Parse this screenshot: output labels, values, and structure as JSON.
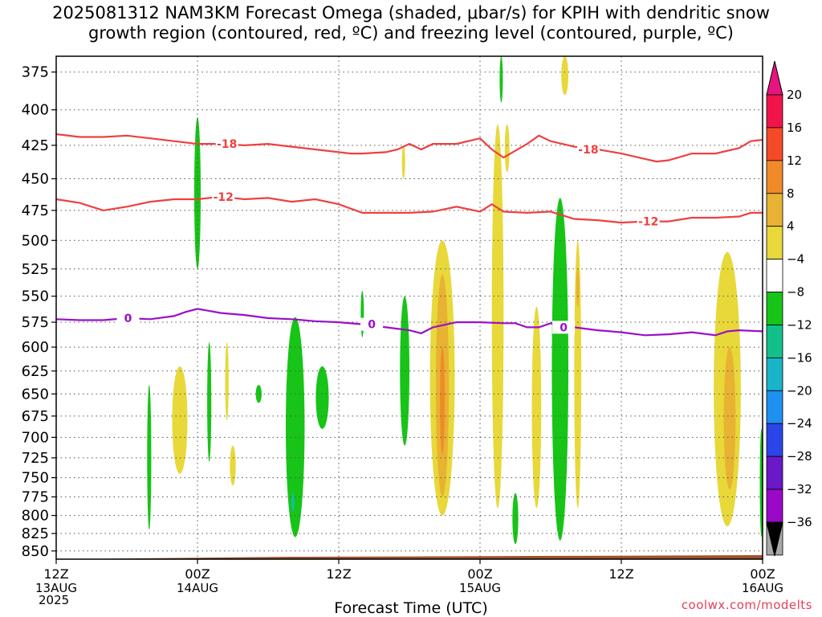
{
  "title_line1": "2025081312 NAM3KM Forecast Omega (shaded, μbar/s) for KPIH with dendritic snow",
  "title_line2": "growth region (contoured, red, ºC) and freezing level (contoured, purple, ºC)",
  "credit": "coolwx.com/modelts",
  "chart_data": {
    "type": "heatmap",
    "title": "2025081312 NAM3KM Forecast Omega (shaded, μbar/s) for KPIH with dendritic snow growth region (contoured, red, ºC) and freezing level (contoured, purple, ºC)",
    "xlabel": "Forecast Time (UTC)",
    "ylabel": "",
    "y_scale": "pressure (hPa), inverted",
    "y_ticks": [
      375,
      400,
      425,
      450,
      475,
      500,
      525,
      550,
      575,
      600,
      625,
      650,
      675,
      700,
      725,
      750,
      775,
      800,
      825,
      850
    ],
    "ylim": [
      850,
      365
    ],
    "x_range_hours": [
      0,
      60
    ],
    "x_ticks": [
      {
        "hour": 0,
        "label": "12Z",
        "sub": "13AUG",
        "sub2": "2025"
      },
      {
        "hour": 12,
        "label": "00Z",
        "sub": "14AUG",
        "sub2": ""
      },
      {
        "hour": 24,
        "label": "12Z",
        "sub": "",
        "sub2": ""
      },
      {
        "hour": 36,
        "label": "00Z",
        "sub": "15AUG",
        "sub2": ""
      },
      {
        "hour": 48,
        "label": "12Z",
        "sub": "",
        "sub2": ""
      },
      {
        "hour": 60,
        "label": "00Z",
        "sub": "16AUG",
        "sub2": ""
      }
    ],
    "grid": "dotted",
    "colorbar": {
      "labels": [
        "20",
        "16",
        "12",
        "8",
        "4",
        "−4",
        "−8",
        "−12",
        "−16",
        "−20",
        "−24",
        "−28",
        "−32",
        "−36"
      ],
      "colors": [
        "#f0144a",
        "#f54a2a",
        "#f08a28",
        "#e8b232",
        "#e8d83a",
        "#ffffff",
        "#17c417",
        "#13c08a",
        "#19b4c8",
        "#1e90f0",
        "#2a46e8",
        "#6a18c8",
        "#9a08c8",
        "#a9a9a9"
      ],
      "top_arrow_color": "#e6147e",
      "bottom_arrow_color": "#000000"
    },
    "contours": [
      {
        "level": "-18",
        "color": "#ee4040",
        "points": [
          [
            0,
            417
          ],
          [
            2,
            419
          ],
          [
            4,
            419
          ],
          [
            6,
            418
          ],
          [
            8,
            420
          ],
          [
            10,
            422
          ],
          [
            12,
            424
          ],
          [
            14,
            424
          ],
          [
            16,
            425
          ],
          [
            18,
            424
          ],
          [
            20,
            426
          ],
          [
            22,
            428
          ],
          [
            24,
            430
          ],
          [
            25,
            431
          ],
          [
            26,
            431
          ],
          [
            28,
            430
          ],
          [
            29,
            428
          ],
          [
            30,
            424
          ],
          [
            31,
            428
          ],
          [
            32,
            424
          ],
          [
            34,
            424
          ],
          [
            36,
            420
          ],
          [
            37,
            428
          ],
          [
            38,
            434
          ],
          [
            40,
            424
          ],
          [
            41,
            418
          ],
          [
            42,
            422
          ],
          [
            44,
            426
          ],
          [
            46,
            428
          ],
          [
            48,
            431
          ],
          [
            50,
            435
          ],
          [
            51,
            437
          ],
          [
            52,
            436
          ],
          [
            54,
            431
          ],
          [
            56,
            431
          ],
          [
            58,
            427
          ],
          [
            59,
            422
          ],
          [
            60,
            421
          ]
        ],
        "labels": [
          [
            14.5,
            424
          ],
          [
            45.2,
            428
          ]
        ]
      },
      {
        "level": "-12",
        "color": "#ee4040",
        "points": [
          [
            0,
            466
          ],
          [
            2,
            469
          ],
          [
            4,
            475
          ],
          [
            6,
            472
          ],
          [
            8,
            468
          ],
          [
            10,
            466
          ],
          [
            12,
            466
          ],
          [
            14,
            464
          ],
          [
            16,
            466
          ],
          [
            18,
            465
          ],
          [
            20,
            468
          ],
          [
            22,
            466
          ],
          [
            24,
            470
          ],
          [
            26,
            477
          ],
          [
            28,
            477
          ],
          [
            30,
            477
          ],
          [
            32,
            476
          ],
          [
            34,
            472
          ],
          [
            36,
            476
          ],
          [
            37,
            470
          ],
          [
            38,
            476
          ],
          [
            40,
            477
          ],
          [
            42,
            476
          ],
          [
            44,
            482
          ],
          [
            46,
            483
          ],
          [
            48,
            485
          ],
          [
            50,
            484
          ],
          [
            52,
            484
          ],
          [
            54,
            481
          ],
          [
            56,
            481
          ],
          [
            58,
            480
          ],
          [
            59,
            477
          ],
          [
            60,
            477
          ]
        ],
        "labels": [
          [
            14.2,
            464
          ],
          [
            50.3,
            484
          ]
        ]
      },
      {
        "level": "0",
        "color": "#9a10c8",
        "points": [
          [
            0,
            572
          ],
          [
            2,
            573
          ],
          [
            4,
            573
          ],
          [
            6,
            571
          ],
          [
            8,
            572
          ],
          [
            10,
            569
          ],
          [
            11,
            565
          ],
          [
            12,
            562
          ],
          [
            14,
            566
          ],
          [
            16,
            568
          ],
          [
            18,
            571
          ],
          [
            20,
            572
          ],
          [
            22,
            574
          ],
          [
            24,
            575
          ],
          [
            26,
            577
          ],
          [
            28,
            580
          ],
          [
            30,
            583
          ],
          [
            31,
            586
          ],
          [
            32,
            580
          ],
          [
            34,
            575
          ],
          [
            36,
            575
          ],
          [
            38,
            576
          ],
          [
            39,
            576
          ],
          [
            40,
            580
          ],
          [
            41,
            580
          ],
          [
            42,
            576
          ],
          [
            43,
            581
          ],
          [
            44,
            580
          ],
          [
            46,
            583
          ],
          [
            48,
            585
          ],
          [
            50,
            588
          ],
          [
            52,
            587
          ],
          [
            54,
            585
          ],
          [
            56,
            588
          ],
          [
            57,
            584
          ],
          [
            58,
            583
          ],
          [
            60,
            584
          ]
        ],
        "labels": [
          [
            6.1,
            571
          ],
          [
            26.8,
            577
          ],
          [
            43.1,
            580
          ]
        ]
      }
    ],
    "shaded_regions": [
      {
        "value": "4 to 8",
        "color": "#e8d83a",
        "cx": 10.5,
        "p1": 620,
        "p2": 745,
        "w": 1.3
      },
      {
        "value": "4 to 8",
        "color": "#e8d83a",
        "cx": 14.5,
        "p1": 595,
        "p2": 680,
        "w": 0.3
      },
      {
        "value": "4 to 8",
        "color": "#e8d83a",
        "cx": 15.0,
        "p1": 710,
        "p2": 760,
        "w": 0.5
      },
      {
        "value": "4 to 8",
        "color": "#e8d83a",
        "cx": 29.5,
        "p1": 425,
        "p2": 450,
        "w": 0.25
      },
      {
        "value": "4 to 8",
        "color": "#e8d83a",
        "cx": 32.8,
        "p1": 500,
        "p2": 800,
        "w": 2.1
      },
      {
        "value": "8 to 12",
        "color": "#e8b232",
        "cx": 32.8,
        "p1": 530,
        "p2": 775,
        "w": 1.1
      },
      {
        "value": "12 to 16",
        "color": "#f08a28",
        "cx": 32.8,
        "p1": 600,
        "p2": 720,
        "w": 0.4
      },
      {
        "value": "4 to 8",
        "color": "#e8d83a",
        "cx": 37.5,
        "p1": 410,
        "p2": 790,
        "w": 1.0
      },
      {
        "value": "4 to 8",
        "color": "#e8d83a",
        "cx": 38.3,
        "p1": 410,
        "p2": 445,
        "w": 0.4
      },
      {
        "value": "4 to 8",
        "color": "#e8d83a",
        "cx": 40.8,
        "p1": 560,
        "p2": 790,
        "w": 0.8
      },
      {
        "value": "4 to 8",
        "color": "#e8d83a",
        "cx": 43.2,
        "p1": 365,
        "p2": 390,
        "w": 0.6
      },
      {
        "value": "4 to 8",
        "color": "#e8d83a",
        "cx": 44.3,
        "p1": 500,
        "p2": 790,
        "w": 0.6
      },
      {
        "value": "8 to 12",
        "color": "#e8b232",
        "cx": 44.3,
        "p1": 525,
        "p2": 560,
        "w": 0.25
      },
      {
        "value": "4 to 8",
        "color": "#e8d83a",
        "cx": 57.0,
        "p1": 510,
        "p2": 815,
        "w": 2.3
      },
      {
        "value": "8 to 12",
        "color": "#e8b232",
        "cx": 57.2,
        "p1": 600,
        "p2": 765,
        "w": 1.0
      },
      {
        "value": "-4 to -8",
        "color": "#17c417",
        "cx": 7.9,
        "p1": 640,
        "p2": 820,
        "w": 0.35
      },
      {
        "value": "-4 to -8",
        "color": "#17c417",
        "cx": 12.0,
        "p1": 405,
        "p2": 525,
        "w": 0.55
      },
      {
        "value": "-4 to -8",
        "color": "#17c417",
        "cx": 13.0,
        "p1": 595,
        "p2": 730,
        "w": 0.35
      },
      {
        "value": "-4 to -8",
        "color": "#17c417",
        "cx": 17.2,
        "p1": 640,
        "p2": 660,
        "w": 0.5
      },
      {
        "value": "-4 to -8",
        "color": "#17c417",
        "cx": 20.3,
        "p1": 570,
        "p2": 830,
        "w": 1.6
      },
      {
        "value": "-4 to -8",
        "color": "#17c417",
        "cx": 22.6,
        "p1": 620,
        "p2": 690,
        "w": 1.1
      },
      {
        "value": "-4 to -8",
        "color": "#17c417",
        "cx": 26.0,
        "p1": 545,
        "p2": 590,
        "w": 0.2
      },
      {
        "value": "-4 to -8",
        "color": "#17c417",
        "cx": 29.6,
        "p1": 550,
        "p2": 710,
        "w": 0.8
      },
      {
        "value": "-4 to -8",
        "color": "#17c417",
        "cx": 37.8,
        "p1": 365,
        "p2": 395,
        "w": 0.25
      },
      {
        "value": "-4 to -8",
        "color": "#17c417",
        "cx": 39.0,
        "p1": 770,
        "p2": 840,
        "w": 0.5
      },
      {
        "value": "-4 to -8",
        "color": "#17c417",
        "cx": 42.8,
        "p1": 465,
        "p2": 835,
        "w": 1.4
      },
      {
        "value": "-4 to -8",
        "color": "#17c417",
        "cx": 59.9,
        "p1": 690,
        "p2": 830,
        "w": 0.2
      },
      {
        "value": "-8 to -12",
        "color": "#13c08a",
        "cx": 20.1,
        "p1": 770,
        "p2": 795,
        "w": 0.3
      }
    ],
    "terrain": {
      "color": "#a0522d",
      "surface_hPa": 855
    }
  }
}
